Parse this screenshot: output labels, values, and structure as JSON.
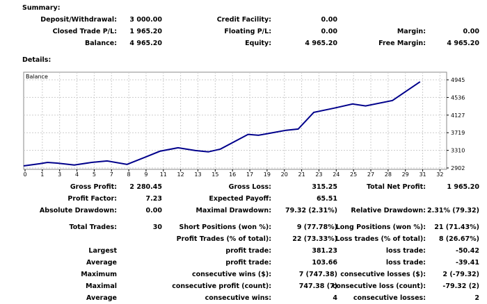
{
  "summary": {
    "title": "Summary:",
    "rows": [
      [
        {
          "label": "Deposit/Withdrawal:",
          "value": "3 000.00"
        },
        {
          "label": "Credit Facility:",
          "value": "0.00"
        },
        {
          "label": "",
          "value": ""
        }
      ],
      [
        {
          "label": "Closed Trade P/L:",
          "value": "1 965.20"
        },
        {
          "label": "Floating P/L:",
          "value": "0.00"
        },
        {
          "label": "Margin:",
          "value": "0.00"
        }
      ],
      [
        {
          "label": "Balance:",
          "value": "4 965.20"
        },
        {
          "label": "Equity:",
          "value": "4 965.20"
        },
        {
          "label": "Free Margin:",
          "value": "4 965.20"
        }
      ]
    ]
  },
  "details": {
    "title": "Details:",
    "rows": [
      [
        {
          "label": "Gross Profit:",
          "value": "2 280.45"
        },
        {
          "label": "Gross Loss:",
          "value": "315.25"
        },
        {
          "label": "Total Net Profit:",
          "value": "1 965.20"
        }
      ],
      [
        {
          "label": "Profit Factor:",
          "value": "7.23"
        },
        {
          "label": "Expected Payoff:",
          "value": "65.51"
        },
        {
          "label": "",
          "value": ""
        }
      ],
      [
        {
          "label": "Absolute Drawdown:",
          "value": "0.00"
        },
        {
          "label": "Maximal Drawdown:",
          "value": "79.32 (2.31%)"
        },
        {
          "label": "Relative Drawdown:",
          "value": "2.31% (79.32)"
        }
      ],
      [
        {
          "label": "Total Trades:",
          "value": "30"
        },
        {
          "label": "Short Positions (won %):",
          "value": "9 (77.78%)"
        },
        {
          "label": "Long Positions (won %):",
          "value": "21 (71.43%)"
        }
      ],
      [
        {
          "label": "",
          "value": ""
        },
        {
          "label": "Profit Trades (% of total):",
          "value": "22 (73.33%)"
        },
        {
          "label": "Loss trades (% of total):",
          "value": "8 (26.67%)"
        }
      ],
      [
        {
          "label": "Largest",
          "value": ""
        },
        {
          "label": "profit trade:",
          "value": "381.23"
        },
        {
          "label": "loss trade:",
          "value": "-50.42"
        }
      ],
      [
        {
          "label": "Average",
          "value": ""
        },
        {
          "label": "profit trade:",
          "value": "103.66"
        },
        {
          "label": "loss trade:",
          "value": "-39.41"
        }
      ],
      [
        {
          "label": "Maximum",
          "value": ""
        },
        {
          "label": "consecutive wins ($):",
          "value": "7 (747.38)"
        },
        {
          "label": "consecutive losses ($):",
          "value": "2 (-79.32)"
        }
      ],
      [
        {
          "label": "Maximal",
          "value": ""
        },
        {
          "label": "consecutive profit (count):",
          "value": "747.38 (7)"
        },
        {
          "label": "consecutive loss (count):",
          "value": "-79.32 (2)"
        }
      ],
      [
        {
          "label": "Average",
          "value": ""
        },
        {
          "label": "consecutive wins:",
          "value": "4"
        },
        {
          "label": "consecutive losses:",
          "value": "2"
        }
      ]
    ]
  },
  "chart_data": {
    "type": "line",
    "title": "Balance",
    "x_tick_labels": [
      "0",
      "1",
      "3",
      "4",
      "5",
      "7",
      "8",
      "9",
      "11",
      "12",
      "13",
      "15",
      "16",
      "17",
      "19",
      "20",
      "21",
      "23",
      "24",
      "25",
      "27",
      "28",
      "29",
      "31",
      "32"
    ],
    "y_tick_labels": [
      "4945",
      "4536",
      "4127",
      "3719",
      "3310",
      "2902"
    ],
    "ylim": [
      2902,
      4945
    ],
    "line_color": "#00008b",
    "series": [
      {
        "name": "Balance",
        "points": [
          [
            -0.08,
            2950
          ],
          [
            0.85,
            3000
          ],
          [
            1.3,
            3030
          ],
          [
            1.85,
            3015
          ],
          [
            2.85,
            2970
          ],
          [
            3.85,
            3030
          ],
          [
            4.75,
            3065
          ],
          [
            5.9,
            2985
          ],
          [
            6.9,
            3145
          ],
          [
            7.8,
            3290
          ],
          [
            8.85,
            3370
          ],
          [
            9.85,
            3305
          ],
          [
            10.6,
            3275
          ],
          [
            11.3,
            3340
          ],
          [
            12.9,
            3680
          ],
          [
            13.5,
            3660
          ],
          [
            15.1,
            3775
          ],
          [
            15.8,
            3805
          ],
          [
            16.7,
            4190
          ],
          [
            17.9,
            4290
          ],
          [
            18.95,
            4385
          ],
          [
            19.7,
            4340
          ],
          [
            21.25,
            4465
          ],
          [
            22.85,
            4900
          ]
        ]
      }
    ],
    "grid": true
  }
}
